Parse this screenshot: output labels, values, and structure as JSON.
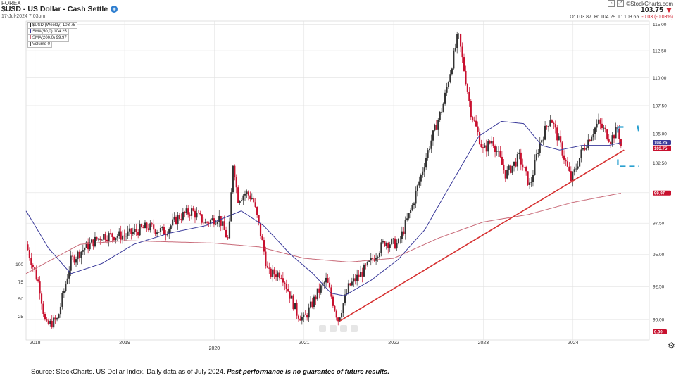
{
  "header": {
    "market": "FOREX",
    "title": "$USD - US Dollar - Cash Settle",
    "date": "17-Jul-2024 7:03pm",
    "brand": "©StockCharts.com",
    "last": "103.75",
    "open_label": "O:",
    "open": "103.87",
    "high_label": "H:",
    "high": "104.29",
    "low_label": "L:",
    "low": "103.65",
    "change": "-0.03 (-0.03%)"
  },
  "legend": {
    "price": "$USD (Weekly) 103.75",
    "sma50": "SMA(50,0) 104.25",
    "sma200": "SMA(200,0) 99.97",
    "volume": "Volume 0"
  },
  "footer": {
    "source_plain": "Source: StockCharts. US Dollar Index. Daily data as of July 2024. ",
    "source_bold": "Past performance is no guarantee of future results."
  },
  "colors": {
    "up": "#333333",
    "down": "#c8102e",
    "sma50": "#3a3a9a",
    "sma200": "#c86a78",
    "trendline": "#d63030",
    "highlight": "#2aa0d0"
  },
  "chart_data": {
    "type": "candlestick",
    "interval": "weekly",
    "y_axis": {
      "scale": "log",
      "min": 88.5,
      "max": 115.3,
      "ticks": [
        "115.00",
        "112.50",
        "110.00",
        "107.50",
        "105.00",
        "102.50",
        "100.00",
        "97.50",
        "95.00",
        "92.50",
        "90.00",
        "0.00"
      ],
      "tick_values": [
        115,
        112.5,
        110,
        107.5,
        105,
        102.5,
        100,
        97.5,
        95,
        92.5,
        90
      ]
    },
    "volume_axis_ticks": [
      "100",
      "75",
      "50",
      "25"
    ],
    "x_axis": {
      "labels": [
        "2018",
        "2019",
        "2020",
        "2021",
        "2022",
        "2023",
        "2024"
      ],
      "start": 2017.9,
      "end": 2024.85
    },
    "price_tags": {
      "sma50": "104.25",
      "last": "103.75",
      "sma200": "99.97",
      "volume": "0.00"
    },
    "grid": true,
    "legend_position": "top-left",
    "close_anchors": [
      [
        2017.9,
        95.8
      ],
      [
        2018.05,
        92.5
      ],
      [
        2018.12,
        89.5
      ],
      [
        2018.25,
        90.0
      ],
      [
        2018.4,
        94.5
      ],
      [
        2018.55,
        95.5
      ],
      [
        2018.75,
        96.5
      ],
      [
        2019.0,
        96.5
      ],
      [
        2019.25,
        97.2
      ],
      [
        2019.45,
        96.8
      ],
      [
        2019.6,
        98.0
      ],
      [
        2019.75,
        98.5
      ],
      [
        2019.9,
        97.5
      ],
      [
        2020.05,
        98.0
      ],
      [
        2020.16,
        96.0
      ],
      [
        2020.21,
        102.8
      ],
      [
        2020.26,
        99.5
      ],
      [
        2020.35,
        100.0
      ],
      [
        2020.43,
        99.5
      ],
      [
        2020.52,
        96.5
      ],
      [
        2020.6,
        93.5
      ],
      [
        2020.75,
        93.5
      ],
      [
        2020.92,
        90.5
      ],
      [
        2021.0,
        90.0
      ],
      [
        2021.15,
        92.0
      ],
      [
        2021.25,
        93.0
      ],
      [
        2021.38,
        90.0
      ],
      [
        2021.5,
        92.5
      ],
      [
        2021.7,
        94.0
      ],
      [
        2021.9,
        96.0
      ],
      [
        2022.05,
        95.8
      ],
      [
        2022.2,
        98.7
      ],
      [
        2022.4,
        104.0
      ],
      [
        2022.55,
        107.5
      ],
      [
        2022.72,
        114.0
      ],
      [
        2022.86,
        107.0
      ],
      [
        2023.0,
        103.5
      ],
      [
        2023.1,
        104.5
      ],
      [
        2023.25,
        101.5
      ],
      [
        2023.4,
        103.0
      ],
      [
        2023.52,
        100.5
      ],
      [
        2023.62,
        104.0
      ],
      [
        2023.75,
        106.5
      ],
      [
        2023.88,
        103.5
      ],
      [
        2023.98,
        101.0
      ],
      [
        2024.1,
        103.5
      ],
      [
        2024.28,
        106.0
      ],
      [
        2024.42,
        104.5
      ],
      [
        2024.5,
        105.5
      ],
      [
        2024.54,
        103.75
      ]
    ],
    "sma50_anchors": [
      [
        2017.9,
        98.5
      ],
      [
        2018.15,
        95.5
      ],
      [
        2018.4,
        93.5
      ],
      [
        2018.75,
        94.3
      ],
      [
        2019.1,
        95.8
      ],
      [
        2019.5,
        96.7
      ],
      [
        2019.9,
        97.3
      ],
      [
        2020.3,
        98.5
      ],
      [
        2020.55,
        97.3
      ],
      [
        2020.85,
        95.0
      ],
      [
        2021.1,
        93.5
      ],
      [
        2021.3,
        92.0
      ],
      [
        2021.45,
        91.8
      ],
      [
        2021.75,
        93.0
      ],
      [
        2022.05,
        94.6
      ],
      [
        2022.35,
        97.0
      ],
      [
        2022.7,
        101.5
      ],
      [
        2022.95,
        104.8
      ],
      [
        2023.2,
        106.1
      ],
      [
        2023.45,
        105.9
      ],
      [
        2023.65,
        104.0
      ],
      [
        2023.85,
        103.6
      ],
      [
        2024.1,
        104.0
      ],
      [
        2024.4,
        104.0
      ],
      [
        2024.54,
        104.25
      ]
    ],
    "sma200_anchors": [
      [
        2017.9,
        93.5
      ],
      [
        2018.5,
        95.8
      ],
      [
        2019.0,
        96.1
      ],
      [
        2019.5,
        96.0
      ],
      [
        2020.0,
        95.9
      ],
      [
        2020.5,
        95.6
      ],
      [
        2021.0,
        94.7
      ],
      [
        2021.5,
        94.4
      ],
      [
        2022.0,
        94.7
      ],
      [
        2022.5,
        96.3
      ],
      [
        2023.0,
        97.6
      ],
      [
        2023.5,
        98.2
      ],
      [
        2024.0,
        99.2
      ],
      [
        2024.54,
        99.97
      ]
    ],
    "trendline": [
      [
        2021.4,
        89.9
      ],
      [
        2024.57,
        103.6
      ]
    ]
  }
}
